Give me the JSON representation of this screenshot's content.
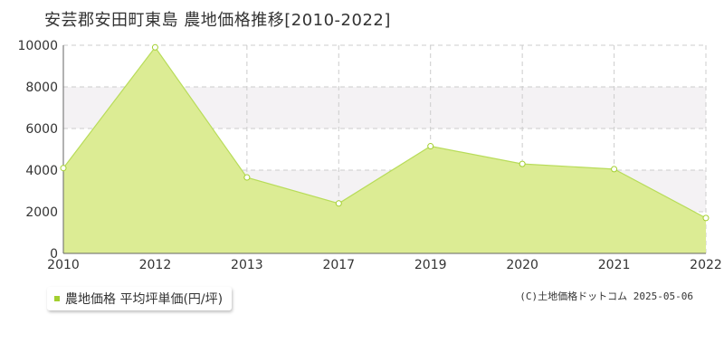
{
  "title": "安芸郡安田町東島 農地価格推移[2010-2022]",
  "legend": {
    "label": "農地価格 平均坪単価(円/坪)"
  },
  "credit": "(C)土地価格ドットコム 2025-05-06",
  "colors": {
    "fill": "#dcec94",
    "line": "#b8dc5a",
    "marker_stroke": "#a3cf30",
    "band": "#f4f2f4",
    "grid": "#cccccc",
    "axis": "#666666"
  },
  "chart_data": {
    "type": "area",
    "title": "安芸郡安田町東島 農地価格推移[2010-2022]",
    "xlabel": "",
    "ylabel": "",
    "categories": [
      "2010",
      "2012",
      "2013",
      "2017",
      "2019",
      "2020",
      "2021",
      "2022"
    ],
    "series": [
      {
        "name": "農地価格 平均坪単価(円/坪)",
        "values": [
          4100,
          9900,
          3650,
          2400,
          5150,
          4300,
          4050,
          1700
        ]
      }
    ],
    "ylim": [
      0,
      10000
    ],
    "yticks": [
      "0",
      "2000",
      "4000",
      "6000",
      "8000",
      "10000"
    ],
    "grid": true,
    "legend_position": "bottom-left"
  }
}
